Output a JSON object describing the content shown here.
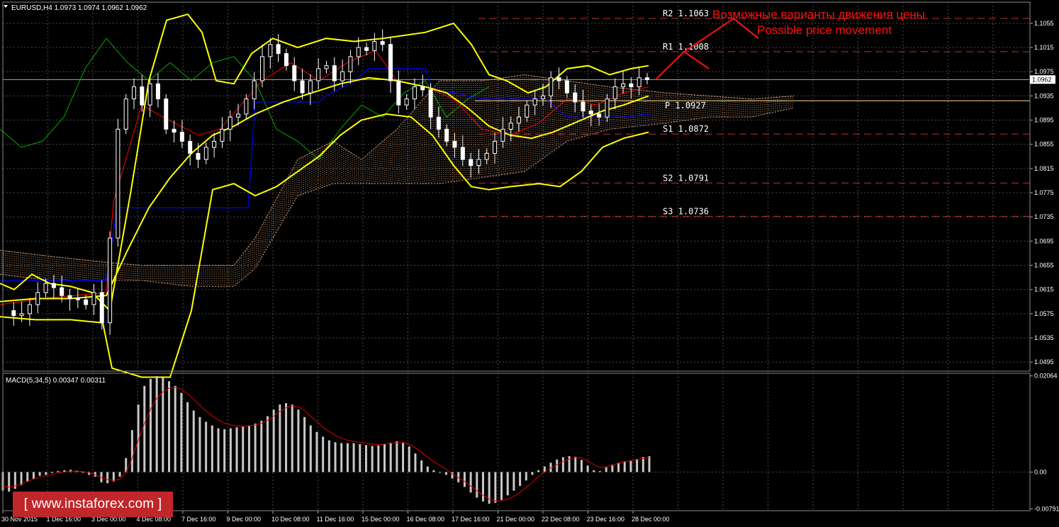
{
  "header": {
    "symbol_text": "EURUSD,H4  1.0973 1.0974 1.0962 1.0962",
    "macd_text": "MACD(5,34,5) 0.00347 0.00311"
  },
  "annotation": {
    "ru": "Возможные варианты движения цены",
    "en": "Possible price movement"
  },
  "logo": "[ www.instaforex.com ]",
  "colors": {
    "background": "#000000",
    "grid": "#4a4a4a",
    "candle": "#ffffff",
    "bollinger": "#ffff00",
    "kijun": "#0000ff",
    "tenkan": "#ff0000",
    "chikou": "#00aa00",
    "cloud": "#d2a07a",
    "pivot": "#ffd58a",
    "level_dash": "#c03030",
    "annotation": "#ff1010",
    "macd_hist": "#c8c8c8",
    "macd_signal": "#dd0000",
    "logo_bg": "#c0262a"
  },
  "chart_data": [
    {
      "type": "candlestick",
      "symbol": "EURUSD",
      "timeframe": "H4",
      "ohlc_last": {
        "open": 1.0973,
        "high": 1.0974,
        "low": 1.0962,
        "close": 1.0962
      },
      "current_price": 1.0962,
      "current_price_label": "1.0962",
      "ylim": [
        1.048,
        1.109
      ],
      "y_ticks": [
        1.0495,
        1.0535,
        1.0575,
        1.0615,
        1.0655,
        1.0695,
        1.0735,
        1.0775,
        1.0815,
        1.0855,
        1.0895,
        1.0935,
        1.0975,
        1.1015,
        1.1055
      ],
      "y_tick_labels": [
        "1.0495",
        "1.0535",
        "1.0575",
        "1.0615",
        "1.0655",
        "1.0695",
        "1.0735",
        "1.0775",
        "1.0815",
        "1.0855",
        "1.0895",
        "1.0935",
        "1.0975",
        "1.1015",
        "1.1055"
      ],
      "x_labels": [
        "30 Nov 2015",
        "1 Dec 16:00",
        "3 Dec 00:00",
        "4 Dec 08:00",
        "7 Dec 16:00",
        "9 Dec 00:00",
        "10 Dec 08:00",
        "11 Dec 16:00",
        "15 Dec 00:00",
        "16 Dec 08:00",
        "17 Dec 16:00",
        "21 Dec 00:00",
        "22 Dec 08:00",
        "23 Dec 16:00",
        "28 Dec 00:00"
      ],
      "pivot_levels": [
        {
          "name": "R2",
          "value": 1.1063,
          "label": "R2  1.1063"
        },
        {
          "name": "R1",
          "value": 1.1008,
          "label": "R1  1.1008"
        },
        {
          "name": "P",
          "value": 1.0927,
          "label": "P  1.0927"
        },
        {
          "name": "S1",
          "value": 1.0872,
          "label": "S1  1.0872"
        },
        {
          "name": "S2",
          "value": 1.0791,
          "label": "S2  1.0791"
        },
        {
          "name": "S3",
          "value": 1.0736,
          "label": "S3  1.0736"
        }
      ],
      "close_path": [
        1.058,
        1.0572,
        1.0575,
        1.059,
        1.061,
        1.0625,
        1.0618,
        1.0605,
        1.06,
        1.0598,
        1.059,
        1.061,
        1.056,
        1.07,
        1.088,
        1.093,
        1.095,
        1.092,
        1.0955,
        1.093,
        1.088,
        1.0875,
        1.086,
        1.084,
        1.083,
        1.085,
        1.086,
        1.088,
        1.09,
        1.0905,
        1.093,
        1.096,
        1.1,
        1.102,
        1.1005,
        1.0985,
        1.096,
        1.094,
        1.096,
        1.098,
        1.0985,
        1.096,
        1.0975,
        1.1,
        1.1015,
        1.101,
        1.1025,
        1.102,
        1.096,
        1.092,
        1.093,
        1.095,
        1.0945,
        1.09,
        1.088,
        1.086,
        1.085,
        1.083,
        1.082,
        1.083,
        1.084,
        1.086,
        1.088,
        1.089,
        1.09,
        1.092,
        1.093,
        1.0935,
        1.0965,
        1.096,
        1.094,
        1.0925,
        1.091,
        1.0905,
        1.09,
        1.093,
        1.095,
        1.0955,
        1.095,
        1.0965,
        1.0962
      ],
      "bollinger": {
        "upper": [
          [
            0,
            1.0625
          ],
          [
            20,
            1.0615
          ],
          [
            45,
            1.064
          ],
          [
            70,
            1.0625
          ],
          [
            100,
            1.062
          ],
          [
            130,
            1.061
          ],
          [
            155,
            1.058
          ],
          [
            185,
            1.078
          ],
          [
            210,
            1.096
          ],
          [
            235,
            1.106
          ],
          [
            265,
            1.107
          ],
          [
            285,
            1.104
          ],
          [
            305,
            1.096
          ],
          [
            330,
            1.0955
          ],
          [
            355,
            1.1005
          ],
          [
            385,
            1.103
          ],
          [
            420,
            1.1015
          ],
          [
            460,
            1.103
          ],
          [
            500,
            1.1025
          ],
          [
            540,
            1.103
          ],
          [
            600,
            1.104
          ],
          [
            640,
            1.1055
          ],
          [
            665,
            1.102
          ],
          [
            690,
            1.097
          ],
          [
            715,
            1.096
          ],
          [
            745,
            1.094
          ],
          [
            770,
            1.095
          ],
          [
            800,
            1.098
          ],
          [
            830,
            1.0985
          ],
          [
            860,
            1.097
          ],
          [
            890,
            1.098
          ],
          [
            915,
            1.0985
          ]
        ],
        "middle": [
          [
            0,
            1.0595
          ],
          [
            50,
            1.06
          ],
          [
            100,
            1.06
          ],
          [
            150,
            1.0605
          ],
          [
            180,
            1.068
          ],
          [
            210,
            1.075
          ],
          [
            240,
            1.08
          ],
          [
            270,
            1.084
          ],
          [
            300,
            1.087
          ],
          [
            330,
            1.0885
          ],
          [
            360,
            1.0905
          ],
          [
            400,
            1.0925
          ],
          [
            440,
            1.094
          ],
          [
            480,
            1.0955
          ],
          [
            520,
            1.0965
          ],
          [
            560,
            1.096
          ],
          [
            600,
            1.095
          ],
          [
            630,
            1.094
          ],
          [
            660,
            1.0915
          ],
          [
            690,
            1.0885
          ],
          [
            720,
            1.087
          ],
          [
            750,
            1.0865
          ],
          [
            780,
            1.0875
          ],
          [
            810,
            1.089
          ],
          [
            850,
            1.091
          ],
          [
            880,
            1.092
          ],
          [
            915,
            1.0935
          ]
        ],
        "lower": [
          [
            0,
            1.057
          ],
          [
            50,
            1.0565
          ],
          [
            100,
            1.0565
          ],
          [
            145,
            1.056
          ],
          [
            158,
            1.0485
          ],
          [
            200,
            1.047
          ],
          [
            240,
            1.047
          ],
          [
            270,
            1.058
          ],
          [
            300,
            1.078
          ],
          [
            330,
            1.079
          ],
          [
            360,
            1.077
          ],
          [
            390,
            1.0785
          ],
          [
            420,
            1.081
          ],
          [
            450,
            1.0835
          ],
          [
            480,
            1.087
          ],
          [
            510,
            1.0895
          ],
          [
            545,
            1.0905
          ],
          [
            580,
            1.09
          ],
          [
            610,
            1.087
          ],
          [
            640,
            1.082
          ],
          [
            665,
            1.0785
          ],
          [
            690,
            1.078
          ],
          [
            720,
            1.0785
          ],
          [
            760,
            1.079
          ],
          [
            790,
            1.0785
          ],
          [
            820,
            1.081
          ],
          [
            850,
            1.085
          ],
          [
            880,
            1.0865
          ],
          [
            915,
            1.0875
          ]
        ]
      },
      "kijun": [
        [
          0,
          1.063
        ],
        [
          150,
          1.063
        ],
        [
          165,
          1.075
        ],
        [
          350,
          1.075
        ],
        [
          360,
          1.0925
        ],
        [
          450,
          1.0925
        ],
        [
          460,
          1.0935
        ],
        [
          500,
          1.096
        ],
        [
          520,
          1.098
        ],
        [
          600,
          1.098
        ],
        [
          610,
          1.0945
        ],
        [
          640,
          1.094
        ],
        [
          680,
          1.093
        ],
        [
          770,
          1.093
        ],
        [
          800,
          1.09
        ],
        [
          880,
          1.09
        ],
        [
          915,
          1.0905
        ]
      ],
      "tenkan": [
        [
          0,
          1.059
        ],
        [
          60,
          1.06
        ],
        [
          150,
          1.061
        ],
        [
          160,
          1.076
        ],
        [
          200,
          1.092
        ],
        [
          230,
          1.09
        ],
        [
          280,
          1.087
        ],
        [
          310,
          1.088
        ],
        [
          340,
          1.092
        ],
        [
          370,
          1.096
        ],
        [
          410,
          1.099
        ],
        [
          450,
          1.096
        ],
        [
          490,
          1.099
        ],
        [
          530,
          1.101
        ],
        [
          560,
          1.096
        ],
        [
          600,
          1.095
        ],
        [
          640,
          1.093
        ],
        [
          680,
          1.088
        ],
        [
          720,
          1.087
        ],
        [
          760,
          1.089
        ],
        [
          800,
          1.093
        ],
        [
          840,
          1.092
        ],
        [
          880,
          1.094
        ],
        [
          915,
          1.095
        ]
      ],
      "chikou": [
        [
          0,
          1.088
        ],
        [
          30,
          1.085
        ],
        [
          60,
          1.086
        ],
        [
          90,
          1.09
        ],
        [
          120,
          1.098
        ],
        [
          150,
          1.103
        ],
        [
          180,
          1.099
        ],
        [
          210,
          1.096
        ],
        [
          240,
          1.099
        ],
        [
          270,
          1.096
        ],
        [
          300,
          1.099
        ],
        [
          330,
          1.1
        ],
        [
          360,
          1.096
        ],
        [
          390,
          1.088
        ],
        [
          420,
          1.086
        ],
        [
          450,
          1.083
        ],
        [
          480,
          1.088
        ],
        [
          510,
          1.092
        ],
        [
          540,
          1.09
        ],
        [
          570,
          1.094
        ],
        [
          600,
          1.096
        ],
        [
          630,
          1.09
        ],
        [
          660,
          1.093
        ],
        [
          690,
          1.095
        ]
      ],
      "cloud": {
        "top": [
          [
            0,
            1.068
          ],
          [
            70,
            1.067
          ],
          [
            150,
            1.066
          ],
          [
            200,
            1.0655
          ],
          [
            270,
            1.0655
          ],
          [
            330,
            1.0655
          ],
          [
            360,
            1.07
          ],
          [
            420,
            1.083
          ],
          [
            470,
            1.086
          ],
          [
            510,
            1.083
          ],
          [
            560,
            1.088
          ],
          [
            620,
            1.096
          ],
          [
            680,
            1.096
          ],
          [
            740,
            1.097
          ],
          [
            800,
            1.096
          ],
          [
            860,
            1.095
          ],
          [
            940,
            1.094
          ],
          [
            1000,
            1.0935
          ],
          [
            1060,
            1.093
          ],
          [
            1120,
            1.0935
          ]
        ],
        "bottom": [
          [
            0,
            1.064
          ],
          [
            70,
            1.063
          ],
          [
            150,
            1.063
          ],
          [
            200,
            1.063
          ],
          [
            270,
            1.062
          ],
          [
            330,
            1.062
          ],
          [
            360,
            1.065
          ],
          [
            420,
            1.077
          ],
          [
            470,
            1.079
          ],
          [
            510,
            1.079
          ],
          [
            560,
            1.079
          ],
          [
            620,
            1.079
          ],
          [
            680,
            1.08
          ],
          [
            740,
            1.081
          ],
          [
            800,
            1.086
          ],
          [
            860,
            1.088
          ],
          [
            940,
            1.089
          ],
          [
            1000,
            1.09
          ],
          [
            1060,
            1.09
          ],
          [
            1120,
            1.0915
          ]
        ]
      },
      "forecast_path": [
        [
          925,
          1.0962
        ],
        [
          965,
          1.1008
        ],
        [
          1035,
          1.1063
        ],
        [
          1070,
          1.103
        ]
      ],
      "forecast_branch": [
        [
          965,
          1.1008
        ],
        [
          1000,
          1.098
        ]
      ]
    },
    {
      "type": "bar",
      "title": "MACD(5,34,5)",
      "main_value": 0.00347,
      "signal_value": 0.00311,
      "ylim": [
        -0.0083,
        0.0212
      ],
      "y_ticks": [
        0.02064,
        0.0,
        -0.00791
      ],
      "y_tick_labels": [
        "0.02064",
        "0.00",
        "-0.00791"
      ],
      "histogram": [
        -0.004,
        -0.0042,
        -0.0036,
        -0.0028,
        -0.002,
        -0.0014,
        -0.0008,
        -0.0006,
        -0.0002,
        0.0002,
        0.0004,
        0.0005,
        0.0003,
        0.0,
        -0.0006,
        -0.001,
        -0.0022,
        -0.0024,
        -0.002,
        -0.001,
        0.003,
        0.009,
        0.0145,
        0.0185,
        0.02,
        0.0206,
        0.0202,
        0.0195,
        0.0185,
        0.017,
        0.015,
        0.0132,
        0.0118,
        0.0108,
        0.01,
        0.0094,
        0.0092,
        0.0094,
        0.0096,
        0.0098,
        0.01,
        0.0104,
        0.011,
        0.012,
        0.0134,
        0.0145,
        0.0148,
        0.0145,
        0.0134,
        0.0118,
        0.01,
        0.0086,
        0.0076,
        0.0068,
        0.0064,
        0.0062,
        0.0062,
        0.0062,
        0.006,
        0.0058,
        0.0056,
        0.0057,
        0.006,
        0.0063,
        0.0066,
        0.0064,
        0.0055,
        0.004,
        0.0025,
        0.0012,
        0.0004,
        0.0,
        -0.0006,
        -0.0014,
        -0.0022,
        -0.0032,
        -0.0044,
        -0.0055,
        -0.0063,
        -0.0068,
        -0.0066,
        -0.006,
        -0.005,
        -0.004,
        -0.003,
        -0.0018,
        -0.0006,
        0.0004,
        0.0012,
        0.002,
        0.0027,
        0.0032,
        0.0034,
        0.0033,
        0.0026,
        0.0014,
        0.0004,
        0.0002,
        0.001,
        0.0016,
        0.002,
        0.0023,
        0.0025,
        0.0028,
        0.0032,
        0.0034
      ],
      "signal": [
        -0.003,
        -0.0032,
        -0.003,
        -0.0026,
        -0.002,
        -0.0015,
        -0.0011,
        -0.0008,
        -0.0005,
        -0.0002,
        0.0,
        0.0002,
        0.0002,
        0.0001,
        -0.0002,
        -0.0006,
        -0.0012,
        -0.0016,
        -0.0018,
        -0.0015,
        -0.0001,
        0.003,
        0.0068,
        0.0105,
        0.0135,
        0.0158,
        0.0172,
        0.018,
        0.0182,
        0.0178,
        0.0168,
        0.0156,
        0.0143,
        0.0131,
        0.0121,
        0.0112,
        0.0105,
        0.0101,
        0.0099,
        0.0098,
        0.0099,
        0.0101,
        0.0105,
        0.0111,
        0.012,
        0.013,
        0.0138,
        0.0142,
        0.014,
        0.0132,
        0.012,
        0.0108,
        0.0096,
        0.0087,
        0.0079,
        0.0073,
        0.0068,
        0.0066,
        0.0064,
        0.0062,
        0.006,
        0.0059,
        0.006,
        0.0062,
        0.0063,
        0.0063,
        0.006,
        0.0052,
        0.0042,
        0.0032,
        0.0022,
        0.0014,
        0.0006,
        -0.0004,
        -0.0012,
        -0.002,
        -0.003,
        -0.004,
        -0.005,
        -0.0058,
        -0.0062,
        -0.0062,
        -0.0058,
        -0.0052,
        -0.0043,
        -0.0033,
        -0.0022,
        -0.001,
        0.0,
        0.0009,
        0.0016,
        0.0023,
        0.0028,
        0.0031,
        0.003,
        0.0024,
        0.0016,
        0.001,
        0.0011,
        0.0015,
        0.0019,
        0.0022,
        0.0024,
        0.0027,
        0.0029,
        0.0031
      ]
    }
  ]
}
